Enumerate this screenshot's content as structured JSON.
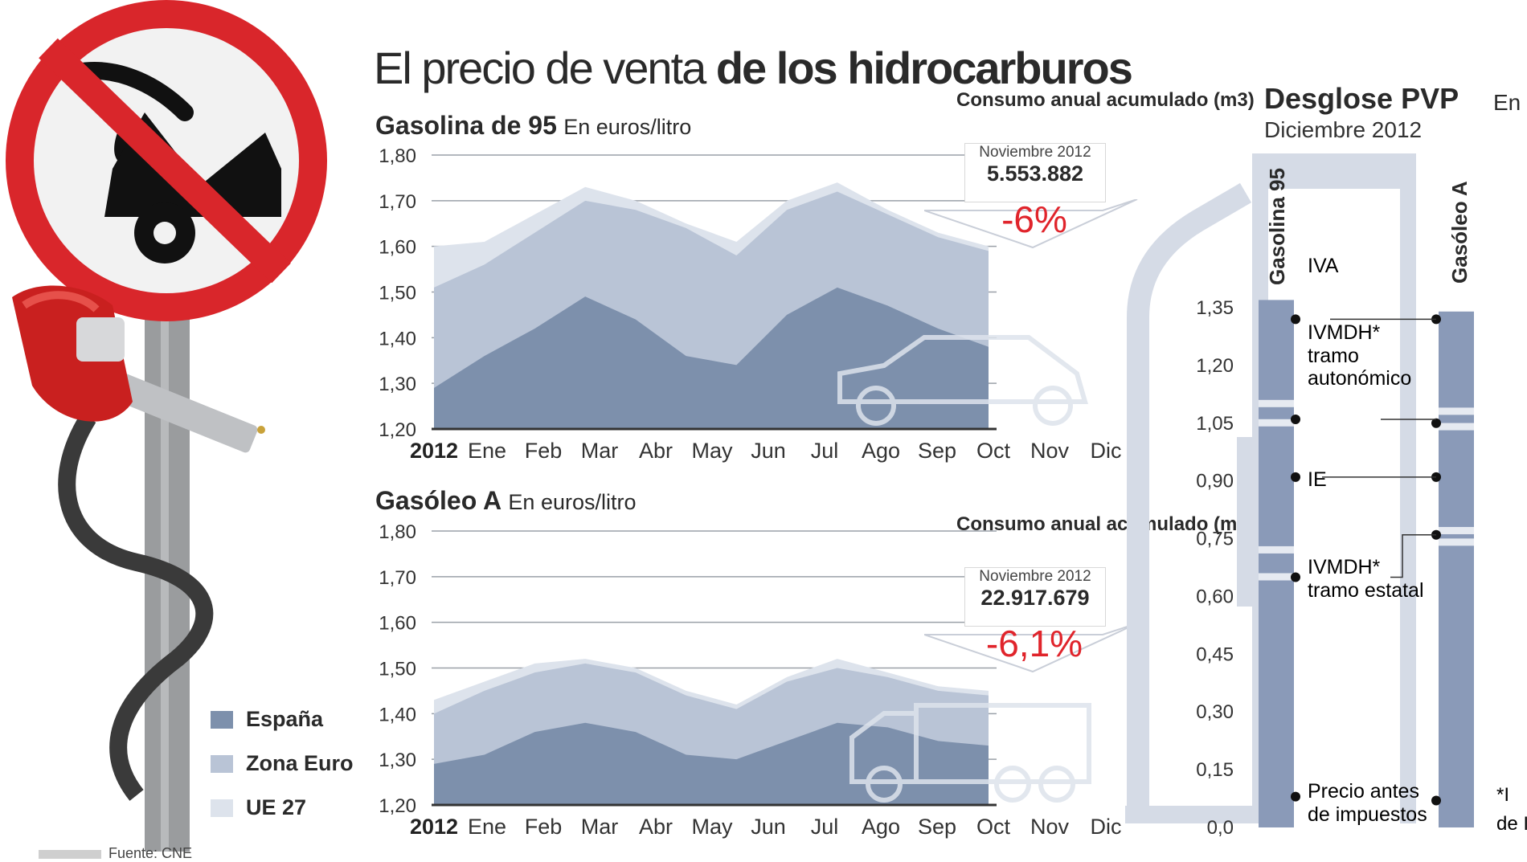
{
  "title": {
    "light": "El precio de venta ",
    "bold": "de los hidrocarburos"
  },
  "source": "Fuente: CNE",
  "legend": [
    {
      "label": "España",
      "color": "#7d90ac"
    },
    {
      "label": "Zona Euro",
      "color": "#b9c4d6"
    },
    {
      "label": "UE 27",
      "color": "#dde3ec"
    }
  ],
  "chart_data": [
    {
      "type": "area",
      "title": "Gasolina de 95",
      "unit": "En euros/litro",
      "year_label": "2012",
      "categories": [
        "Ene",
        "Feb",
        "Mar",
        "Abr",
        "May",
        "Jun",
        "Jul",
        "Ago",
        "Sep",
        "Oct",
        "Nov",
        "Dic"
      ],
      "y_ticks": [
        "1,80",
        "1,70",
        "1,60",
        "1,50",
        "1,40",
        "1,30",
        "1,20"
      ],
      "ylim": [
        1.2,
        1.8
      ],
      "series": [
        {
          "name": "UE 27",
          "values": [
            1.6,
            1.61,
            1.67,
            1.73,
            1.7,
            1.65,
            1.61,
            1.7,
            1.74,
            1.68,
            1.63,
            1.6
          ]
        },
        {
          "name": "Zona Euro",
          "values": [
            1.51,
            1.56,
            1.63,
            1.7,
            1.68,
            1.64,
            1.58,
            1.68,
            1.72,
            1.67,
            1.62,
            1.59
          ]
        },
        {
          "name": "España",
          "values": [
            1.29,
            1.36,
            1.42,
            1.49,
            1.44,
            1.36,
            1.34,
            1.45,
            1.51,
            1.47,
            1.42,
            1.38
          ]
        }
      ],
      "consumo": {
        "label": "Consumo anual acumulado (m3)",
        "date": "Noviembre 2012",
        "value": "5.553.882",
        "change": "-6%"
      }
    },
    {
      "type": "area",
      "title": "Gasóleo A",
      "unit": "En euros/litro",
      "year_label": "2012",
      "categories": [
        "Ene",
        "Feb",
        "Mar",
        "Abr",
        "May",
        "Jun",
        "Jul",
        "Ago",
        "Sep",
        "Oct",
        "Nov",
        "Dic"
      ],
      "y_ticks": [
        "1,80",
        "1,70",
        "1,60",
        "1,50",
        "1,40",
        "1,30",
        "1,20"
      ],
      "ylim": [
        1.2,
        1.8
      ],
      "series": [
        {
          "name": "UE 27",
          "values": [
            1.43,
            1.47,
            1.51,
            1.52,
            1.5,
            1.45,
            1.42,
            1.48,
            1.52,
            1.49,
            1.46,
            1.45
          ]
        },
        {
          "name": "Zona Euro",
          "values": [
            1.4,
            1.45,
            1.49,
            1.51,
            1.49,
            1.44,
            1.41,
            1.47,
            1.5,
            1.48,
            1.45,
            1.44
          ]
        },
        {
          "name": "España",
          "values": [
            1.29,
            1.31,
            1.36,
            1.38,
            1.36,
            1.31,
            1.3,
            1.34,
            1.38,
            1.37,
            1.34,
            1.33
          ]
        }
      ],
      "consumo": {
        "label": "Consumo anual acumulado (m3)",
        "date": "Noviembre 2012",
        "value": "22.917.679",
        "change": "-6,1%"
      }
    },
    {
      "type": "bar",
      "title": "Desglose PVP",
      "unit": "En e",
      "subtitle": "Diciembre 2012",
      "y_ticks": [
        "1,35",
        "1,20",
        "1,05",
        "0,90",
        "0,75",
        "0,60",
        "0,45",
        "0,30",
        "0,15",
        "0,0"
      ],
      "ylim": [
        0,
        1.4
      ],
      "bars": [
        {
          "name": "Gasolina 95",
          "total": 1.37,
          "segments": [
            0.65,
            0.72,
            1.05,
            1.1,
            1.37
          ]
        },
        {
          "name": "Gasóleo A",
          "total": 1.34,
          "segments": [
            0.74,
            0.77,
            1.04,
            1.08,
            1.34
          ]
        }
      ],
      "components": [
        {
          "label": "IVA",
          "value": 1.32
        },
        {
          "label": "IVMDH* tramo autonómico",
          "value": 1.06
        },
        {
          "label": "IE",
          "value": 0.91
        },
        {
          "label": "IVMDH* tramo estatal",
          "value": 0.65
        },
        {
          "label": "Precio antes de impuestos",
          "value": 0.08
        }
      ],
      "footnote": "*I"
    }
  ],
  "pvp": {
    "title": "Desglose PVP",
    "unit": "En e",
    "date": "Diciembre 2012",
    "bar1_label": "Gasolina 95",
    "bar2_label": "Gasóleo A",
    "lbl_iva": "IVA",
    "lbl_ivmdh_a1": "IVMDH*",
    "lbl_ivmdh_a2": "tramo",
    "lbl_ivmdh_a3": "autonómico",
    "lbl_ie": "IE",
    "lbl_ivmdh_e1": "IVMDH*",
    "lbl_ivmdh_e2": "tramo estatal",
    "lbl_pre1": "Precio antes",
    "lbl_pre2": "de impuestos",
    "foot1": "*I",
    "foot2": "de I"
  }
}
